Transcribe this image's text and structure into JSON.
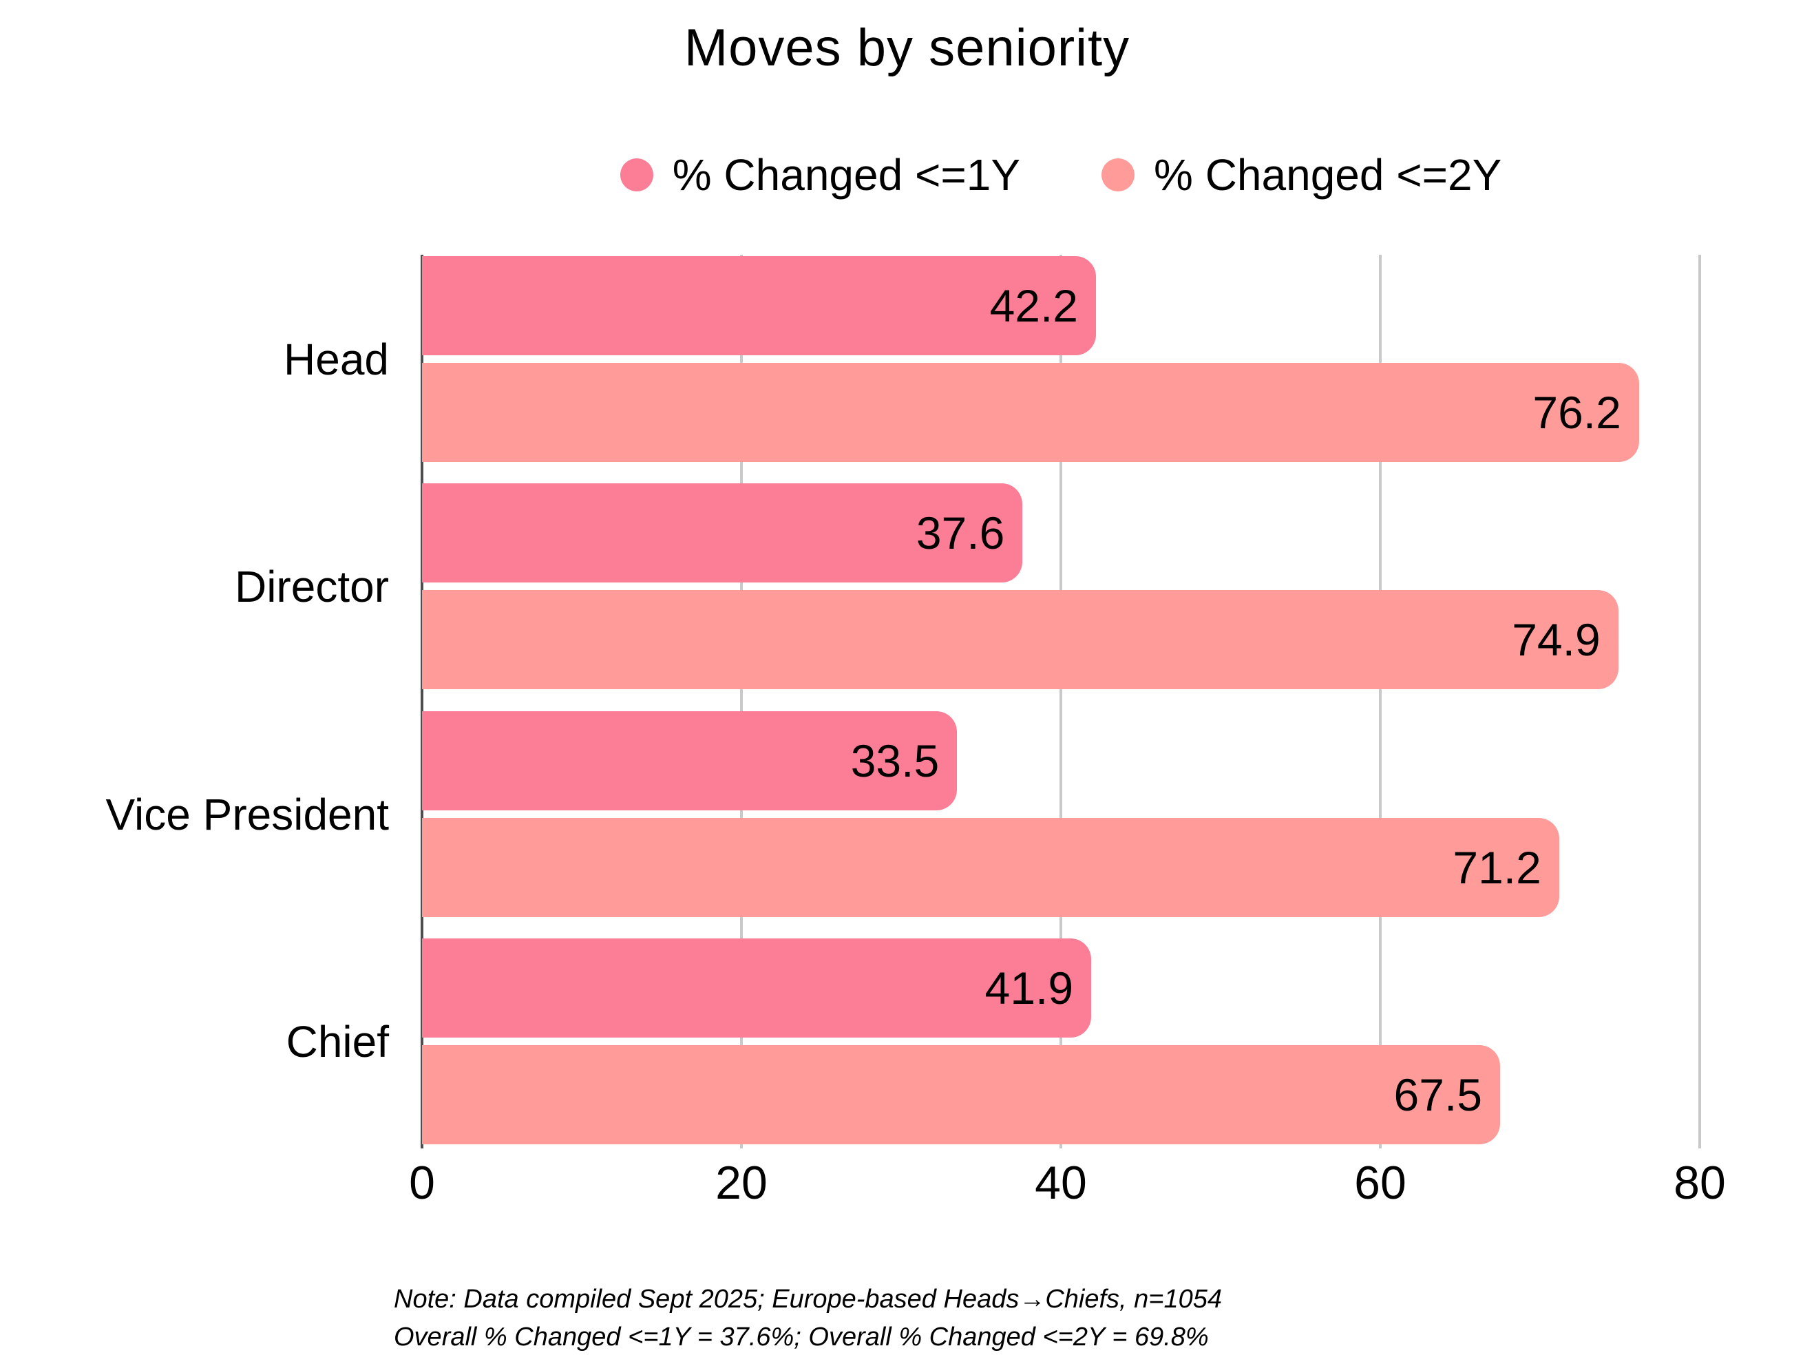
{
  "page": {
    "background": "#FFFFFF"
  },
  "chart_data": {
    "type": "bar",
    "orientation": "horizontal",
    "title": "Moves by seniority",
    "categories": [
      "Head",
      "Director",
      "Vice President",
      "Chief"
    ],
    "series": [
      {
        "name": "% Changed <=1Y",
        "color": "#FB7D96",
        "values": [
          42.2,
          37.6,
          33.5,
          41.9
        ]
      },
      {
        "name": "% Changed <=2Y",
        "color": "#FF9C99",
        "values": [
          76.2,
          74.9,
          71.2,
          67.5
        ]
      }
    ],
    "x_axis": {
      "min": 0,
      "max": 80,
      "ticks": [
        0,
        20,
        40,
        60,
        80
      ]
    },
    "grid": {
      "vertical": true,
      "gridline_color": "#C9C9C9",
      "zero_line_color": "#4D4D4D"
    },
    "legend_position": "top",
    "value_labels": "inside-end"
  },
  "note": {
    "line1": "Note: Data compiled Sept 2025; Europe-based Heads→Chiefs, n=1054",
    "line2": "Overall % Changed <=1Y = 37.6%; Overall % Changed <=2Y = 69.8%"
  }
}
